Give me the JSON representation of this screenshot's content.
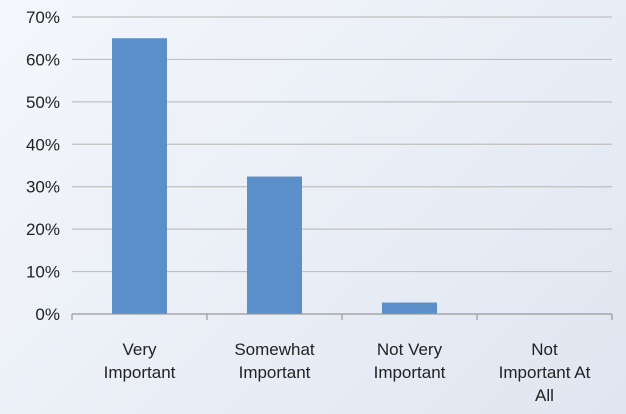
{
  "chart_data": {
    "type": "bar",
    "categories": [
      [
        "Very",
        "Important"
      ],
      [
        "Somewhat",
        "Important"
      ],
      [
        "Not Very",
        "Important"
      ],
      [
        "Not",
        "Important At",
        "All"
      ]
    ],
    "series": [
      {
        "values": [
          65,
          32.4,
          2.7,
          0
        ]
      }
    ],
    "y_ticks": [
      "0%",
      "10%",
      "20%",
      "30%",
      "40%",
      "50%",
      "60%",
      "70%"
    ],
    "ylim": [
      0,
      70
    ],
    "y_unit": "%",
    "grid": true,
    "legend": "none",
    "colors": {
      "bar": "#5b8fc9",
      "grid": "#bfbfbf"
    }
  }
}
